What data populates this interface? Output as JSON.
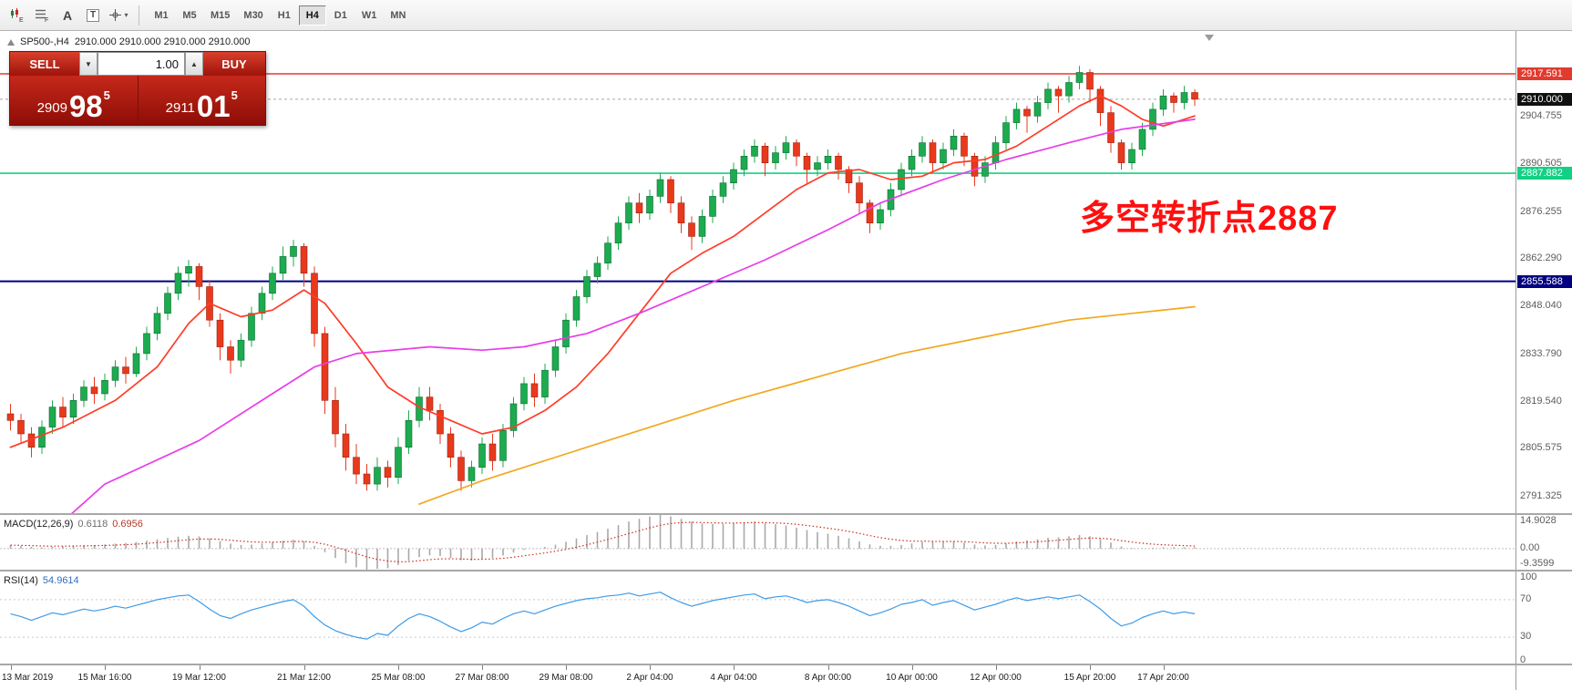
{
  "toolbar": {
    "timeframes": [
      "M1",
      "M5",
      "M15",
      "M30",
      "H1",
      "H4",
      "D1",
      "W1",
      "MN"
    ],
    "active_timeframe": "H4",
    "icons": {
      "expert_letter": "E",
      "script_letter": "F",
      "font_tool": "A",
      "text_tool": "T",
      "caret": "▾"
    }
  },
  "icons": {
    "down_arrow": "▼",
    "up_arrow": "▲"
  },
  "header": {
    "symbol": "SP500-,H4",
    "ohlc": "2910.000 2910.000 2910.000 2910.000"
  },
  "trade_panel": {
    "sell_label": "SELL",
    "buy_label": "BUY",
    "volume": "1.00",
    "sell_price": {
      "head": "2909",
      "big": "98",
      "sup": "5"
    },
    "buy_price": {
      "head": "2911",
      "big": "01",
      "sup": "5"
    }
  },
  "annotation": {
    "text": "多空转折点2887",
    "color": "#ff0f0f"
  },
  "chart_data": {
    "type": "candlestick",
    "symbol": "SP500-",
    "timeframe": "H4",
    "ylim": [
      2786.3,
      2930.4
    ],
    "up_color": "#1cab4f",
    "down_color": "#e8391d",
    "y_ticks": [
      "2904.755",
      "2890.505",
      "2876.255",
      "2862.290",
      "2848.040",
      "2833.790",
      "2819.540",
      "2805.575",
      "2791.325"
    ],
    "levels": [
      {
        "label": "2917.591",
        "color": "#e23b2e",
        "style": "solid",
        "width": 1.4
      },
      {
        "label": "2910.000",
        "color": "#111111",
        "line_color": "#a8a8a8",
        "style": "dashed",
        "width": 1
      },
      {
        "label": "2887.882",
        "color": "#13d184",
        "style": "solid",
        "width": 1.6
      },
      {
        "label": "2855.588",
        "color": "#000080",
        "style": "solid",
        "width": 2
      }
    ],
    "x_labels": [
      {
        "label": "13 Mar 2019",
        "i": 0
      },
      {
        "label": "15 Mar 16:00",
        "i": 9
      },
      {
        "label": "19 Mar 12:00",
        "i": 18
      },
      {
        "label": "21 Mar 12:00",
        "i": 28
      },
      {
        "label": "25 Mar 08:00",
        "i": 37
      },
      {
        "label": "27 Mar 08:00",
        "i": 45
      },
      {
        "label": "29 Mar 08:00",
        "i": 53
      },
      {
        "label": "2 Apr 04:00",
        "i": 61
      },
      {
        "label": "4 Apr 04:00",
        "i": 69
      },
      {
        "label": "8 Apr 00:00",
        "i": 78
      },
      {
        "label": "10 Apr 00:00",
        "i": 86
      },
      {
        "label": "12 Apr 00:00",
        "i": 94
      },
      {
        "label": "15 Apr 20:00",
        "i": 103
      },
      {
        "label": "17 Apr 20:00",
        "i": 110
      }
    ],
    "candles": [
      [
        2816,
        2819,
        2811,
        2814
      ],
      [
        2814,
        2816,
        2807,
        2810
      ],
      [
        2810,
        2812,
        2803,
        2806
      ],
      [
        2806,
        2814,
        2804,
        2812
      ],
      [
        2812,
        2820,
        2810,
        2818
      ],
      [
        2818,
        2821,
        2812,
        2815
      ],
      [
        2815,
        2822,
        2813,
        2820
      ],
      [
        2820,
        2826,
        2818,
        2824
      ],
      [
        2824,
        2827,
        2819,
        2822
      ],
      [
        2822,
        2828,
        2820,
        2826
      ],
      [
        2826,
        2832,
        2824,
        2830
      ],
      [
        2830,
        2833,
        2825,
        2828
      ],
      [
        2828,
        2836,
        2827,
        2834
      ],
      [
        2834,
        2842,
        2832,
        2840
      ],
      [
        2840,
        2848,
        2838,
        2846
      ],
      [
        2846,
        2854,
        2844,
        2852
      ],
      [
        2852,
        2860,
        2850,
        2858
      ],
      [
        2858,
        2862,
        2854,
        2860
      ],
      [
        2860,
        2861,
        2850,
        2854
      ],
      [
        2854,
        2856,
        2842,
        2844
      ],
      [
        2844,
        2846,
        2832,
        2836
      ],
      [
        2836,
        2838,
        2828,
        2832
      ],
      [
        2832,
        2840,
        2830,
        2838
      ],
      [
        2838,
        2848,
        2836,
        2846
      ],
      [
        2846,
        2854,
        2844,
        2852
      ],
      [
        2852,
        2860,
        2850,
        2858
      ],
      [
        2858,
        2866,
        2856,
        2863
      ],
      [
        2863,
        2868,
        2860,
        2866
      ],
      [
        2866,
        2867,
        2854,
        2858
      ],
      [
        2858,
        2860,
        2836,
        2840
      ],
      [
        2840,
        2842,
        2816,
        2820
      ],
      [
        2820,
        2824,
        2806,
        2810
      ],
      [
        2810,
        2813,
        2799,
        2803
      ],
      [
        2803,
        2807,
        2795,
        2798
      ],
      [
        2798,
        2801,
        2793,
        2795
      ],
      [
        2795,
        2803,
        2793,
        2800
      ],
      [
        2800,
        2802,
        2794,
        2797
      ],
      [
        2797,
        2809,
        2795,
        2806
      ],
      [
        2806,
        2817,
        2804,
        2814
      ],
      [
        2814,
        2824,
        2812,
        2821
      ],
      [
        2821,
        2824,
        2814,
        2817
      ],
      [
        2817,
        2819,
        2807,
        2810
      ],
      [
        2810,
        2812,
        2800,
        2803
      ],
      [
        2803,
        2805,
        2793,
        2796
      ],
      [
        2796,
        2802,
        2794,
        2800
      ],
      [
        2800,
        2809,
        2798,
        2807
      ],
      [
        2807,
        2810,
        2799,
        2802
      ],
      [
        2802,
        2813,
        2800,
        2811
      ],
      [
        2811,
        2821,
        2809,
        2819
      ],
      [
        2819,
        2827,
        2817,
        2825
      ],
      [
        2825,
        2828,
        2818,
        2821
      ],
      [
        2821,
        2831,
        2819,
        2829
      ],
      [
        2829,
        2838,
        2827,
        2836
      ],
      [
        2836,
        2846,
        2834,
        2844
      ],
      [
        2844,
        2853,
        2842,
        2851
      ],
      [
        2851,
        2859,
        2849,
        2857
      ],
      [
        2857,
        2863,
        2855,
        2861
      ],
      [
        2861,
        2869,
        2859,
        2867
      ],
      [
        2867,
        2875,
        2865,
        2873
      ],
      [
        2873,
        2881,
        2871,
        2879
      ],
      [
        2879,
        2882,
        2873,
        2876
      ],
      [
        2876,
        2883,
        2874,
        2881
      ],
      [
        2881,
        2888,
        2879,
        2886
      ],
      [
        2886,
        2887,
        2876,
        2879
      ],
      [
        2879,
        2881,
        2870,
        2873
      ],
      [
        2873,
        2875,
        2865,
        2869
      ],
      [
        2869,
        2877,
        2867,
        2875
      ],
      [
        2875,
        2883,
        2873,
        2881
      ],
      [
        2881,
        2887,
        2879,
        2885
      ],
      [
        2885,
        2891,
        2883,
        2889
      ],
      [
        2889,
        2895,
        2887,
        2893
      ],
      [
        2893,
        2898,
        2891,
        2896
      ],
      [
        2896,
        2897,
        2887,
        2891
      ],
      [
        2891,
        2896,
        2889,
        2894
      ],
      [
        2894,
        2899,
        2892,
        2897
      ],
      [
        2897,
        2898,
        2890,
        2893
      ],
      [
        2893,
        2894,
        2885,
        2889
      ],
      [
        2889,
        2893,
        2887,
        2891
      ],
      [
        2891,
        2895,
        2889,
        2893
      ],
      [
        2893,
        2894,
        2886,
        2889
      ],
      [
        2889,
        2890,
        2882,
        2885
      ],
      [
        2885,
        2887,
        2876,
        2879
      ],
      [
        2879,
        2880,
        2870,
        2873
      ],
      [
        2873,
        2879,
        2871,
        2877
      ],
      [
        2877,
        2885,
        2875,
        2883
      ],
      [
        2883,
        2891,
        2881,
        2889
      ],
      [
        2889,
        2895,
        2887,
        2893
      ],
      [
        2893,
        2899,
        2891,
        2897
      ],
      [
        2897,
        2898,
        2888,
        2891
      ],
      [
        2891,
        2897,
        2889,
        2895
      ],
      [
        2895,
        2901,
        2893,
        2899
      ],
      [
        2899,
        2900,
        2890,
        2893
      ],
      [
        2893,
        2894,
        2884,
        2887
      ],
      [
        2887,
        2893,
        2885,
        2891
      ],
      [
        2891,
        2899,
        2889,
        2897
      ],
      [
        2897,
        2905,
        2895,
        2903
      ],
      [
        2903,
        2909,
        2901,
        2907
      ],
      [
        2907,
        2908,
        2900,
        2905
      ],
      [
        2905,
        2911,
        2903,
        2909
      ],
      [
        2909,
        2915,
        2907,
        2913
      ],
      [
        2913,
        2914,
        2906,
        2911
      ],
      [
        2911,
        2917,
        2909,
        2915
      ],
      [
        2915,
        2920,
        2913,
        2918
      ],
      [
        2918,
        2919,
        2909,
        2913
      ],
      [
        2913,
        2914,
        2902,
        2906
      ],
      [
        2906,
        2908,
        2894,
        2897
      ],
      [
        2897,
        2898,
        2889,
        2891
      ],
      [
        2891,
        2897,
        2889,
        2895
      ],
      [
        2895,
        2903,
        2893,
        2901
      ],
      [
        2901,
        2909,
        2899,
        2907
      ],
      [
        2907,
        2913,
        2905,
        2911
      ],
      [
        2911,
        2912,
        2906,
        2909
      ],
      [
        2909,
        2914,
        2907,
        2912
      ],
      [
        2912,
        2913,
        2908,
        2910
      ]
    ],
    "moving_averages": [
      {
        "name": "ma-fast",
        "color": "#ff3c28",
        "points": [
          [
            0,
            2806
          ],
          [
            5,
            2812
          ],
          [
            10,
            2820
          ],
          [
            14,
            2830
          ],
          [
            17,
            2843
          ],
          [
            19,
            2849
          ],
          [
            22,
            2845
          ],
          [
            25,
            2847
          ],
          [
            28,
            2853
          ],
          [
            30,
            2849
          ],
          [
            33,
            2837
          ],
          [
            36,
            2824
          ],
          [
            39,
            2818
          ],
          [
            42,
            2814
          ],
          [
            45,
            2810
          ],
          [
            48,
            2812
          ],
          [
            51,
            2817
          ],
          [
            54,
            2824
          ],
          [
            57,
            2834
          ],
          [
            60,
            2846
          ],
          [
            63,
            2858
          ],
          [
            66,
            2864
          ],
          [
            69,
            2869
          ],
          [
            72,
            2876
          ],
          [
            75,
            2883
          ],
          [
            78,
            2888
          ],
          [
            81,
            2889
          ],
          [
            84,
            2886
          ],
          [
            87,
            2887
          ],
          [
            90,
            2891
          ],
          [
            93,
            2892
          ],
          [
            96,
            2896
          ],
          [
            99,
            2902
          ],
          [
            102,
            2908
          ],
          [
            104,
            2911
          ],
          [
            106,
            2908
          ],
          [
            108,
            2904
          ],
          [
            110,
            2902
          ],
          [
            113,
            2905
          ]
        ]
      },
      {
        "name": "ma-medium",
        "color": "#e93ce9",
        "points": [
          [
            0,
            2772
          ],
          [
            4,
            2781
          ],
          [
            9,
            2795
          ],
          [
            18,
            2808
          ],
          [
            25,
            2822
          ],
          [
            29,
            2830
          ],
          [
            33,
            2834
          ],
          [
            40,
            2836
          ],
          [
            45,
            2835
          ],
          [
            49,
            2836
          ],
          [
            55,
            2840
          ],
          [
            60,
            2846
          ],
          [
            66,
            2854
          ],
          [
            72,
            2862
          ],
          [
            78,
            2871
          ],
          [
            83,
            2879
          ],
          [
            89,
            2886
          ],
          [
            95,
            2892
          ],
          [
            101,
            2897
          ],
          [
            106,
            2901
          ],
          [
            113,
            2904
          ]
        ]
      },
      {
        "name": "ma-slow",
        "color": "#f0a81e",
        "points": [
          [
            39,
            2789
          ],
          [
            45,
            2796
          ],
          [
            53,
            2804
          ],
          [
            61,
            2812
          ],
          [
            69,
            2820
          ],
          [
            77,
            2827
          ],
          [
            85,
            2834
          ],
          [
            93,
            2839
          ],
          [
            101,
            2844
          ],
          [
            107,
            2846
          ],
          [
            113,
            2848
          ]
        ]
      }
    ],
    "macd": {
      "label": "MACD(12,26,9)",
      "value1": "0.6118",
      "value2": "0.6956",
      "axis_labels": [
        "14.9028",
        "0.00",
        "-9.3599"
      ],
      "range": [
        -9.36,
        14.9028
      ],
      "values": [
        1.5,
        1.2,
        0.8,
        0.5,
        0.8,
        1.0,
        1.3,
        1.5,
        1.6,
        1.8,
        2.2,
        2.5,
        2.9,
        3.5,
        4.1,
        4.7,
        5.3,
        5.7,
        5.4,
        4.5,
        3.3,
        2.2,
        1.6,
        1.8,
        2.3,
        2.9,
        3.5,
        3.9,
        3.2,
        1.2,
        -1.6,
        -4.2,
        -6.5,
        -8.3,
        -9.36,
        -9.0,
        -8.7,
        -7.3,
        -5.4,
        -3.8,
        -3.0,
        -3.3,
        -4.2,
        -5.1,
        -5.3,
        -4.6,
        -4.1,
        -3.1,
        -1.8,
        -0.6,
        -0.1,
        0.7,
        1.7,
        3.0,
        4.5,
        6.0,
        7.4,
        8.8,
        10.4,
        12.0,
        13.2,
        14.2,
        14.9,
        14.3,
        13.2,
        12.0,
        11.2,
        10.9,
        11.0,
        11.4,
        11.8,
        12.0,
        11.4,
        10.8,
        10.2,
        9.3,
        8.2,
        7.3,
        6.6,
        5.7,
        4.6,
        3.2,
        1.9,
        1.2,
        1.2,
        1.6,
        2.3,
        3.0,
        3.0,
        3.0,
        3.2,
        2.7,
        1.8,
        1.4,
        1.6,
        2.3,
        3.2,
        3.7,
        4.1,
        4.8,
        5.0,
        5.5,
        6.0,
        5.5,
        4.3,
        2.7,
        0.9,
        0.3,
        0.2,
        0.4,
        0.6,
        0.6,
        0.6,
        0.61
      ]
    },
    "rsi": {
      "label": "RSI(14)",
      "value": "54.9614",
      "levels": [
        100,
        70,
        30,
        0
      ],
      "values": [
        55,
        52,
        48,
        52,
        56,
        54,
        57,
        60,
        58,
        60,
        63,
        61,
        64,
        67,
        70,
        72,
        74,
        75,
        68,
        60,
        53,
        50,
        55,
        59,
        62,
        65,
        68,
        70,
        63,
        52,
        43,
        37,
        33,
        30,
        28,
        34,
        32,
        42,
        50,
        55,
        52,
        47,
        41,
        36,
        40,
        46,
        44,
        50,
        55,
        58,
        55,
        59,
        63,
        66,
        69,
        71,
        72,
        74,
        75,
        77,
        74,
        76,
        78,
        72,
        67,
        63,
        66,
        69,
        71,
        73,
        75,
        76,
        71,
        73,
        74,
        71,
        67,
        69,
        70,
        67,
        63,
        58,
        53,
        56,
        60,
        65,
        67,
        70,
        64,
        67,
        69,
        64,
        59,
        62,
        65,
        69,
        72,
        69,
        71,
        73,
        71,
        73,
        75,
        68,
        60,
        50,
        42,
        45,
        51,
        55,
        58,
        55,
        57,
        54.96
      ]
    }
  }
}
